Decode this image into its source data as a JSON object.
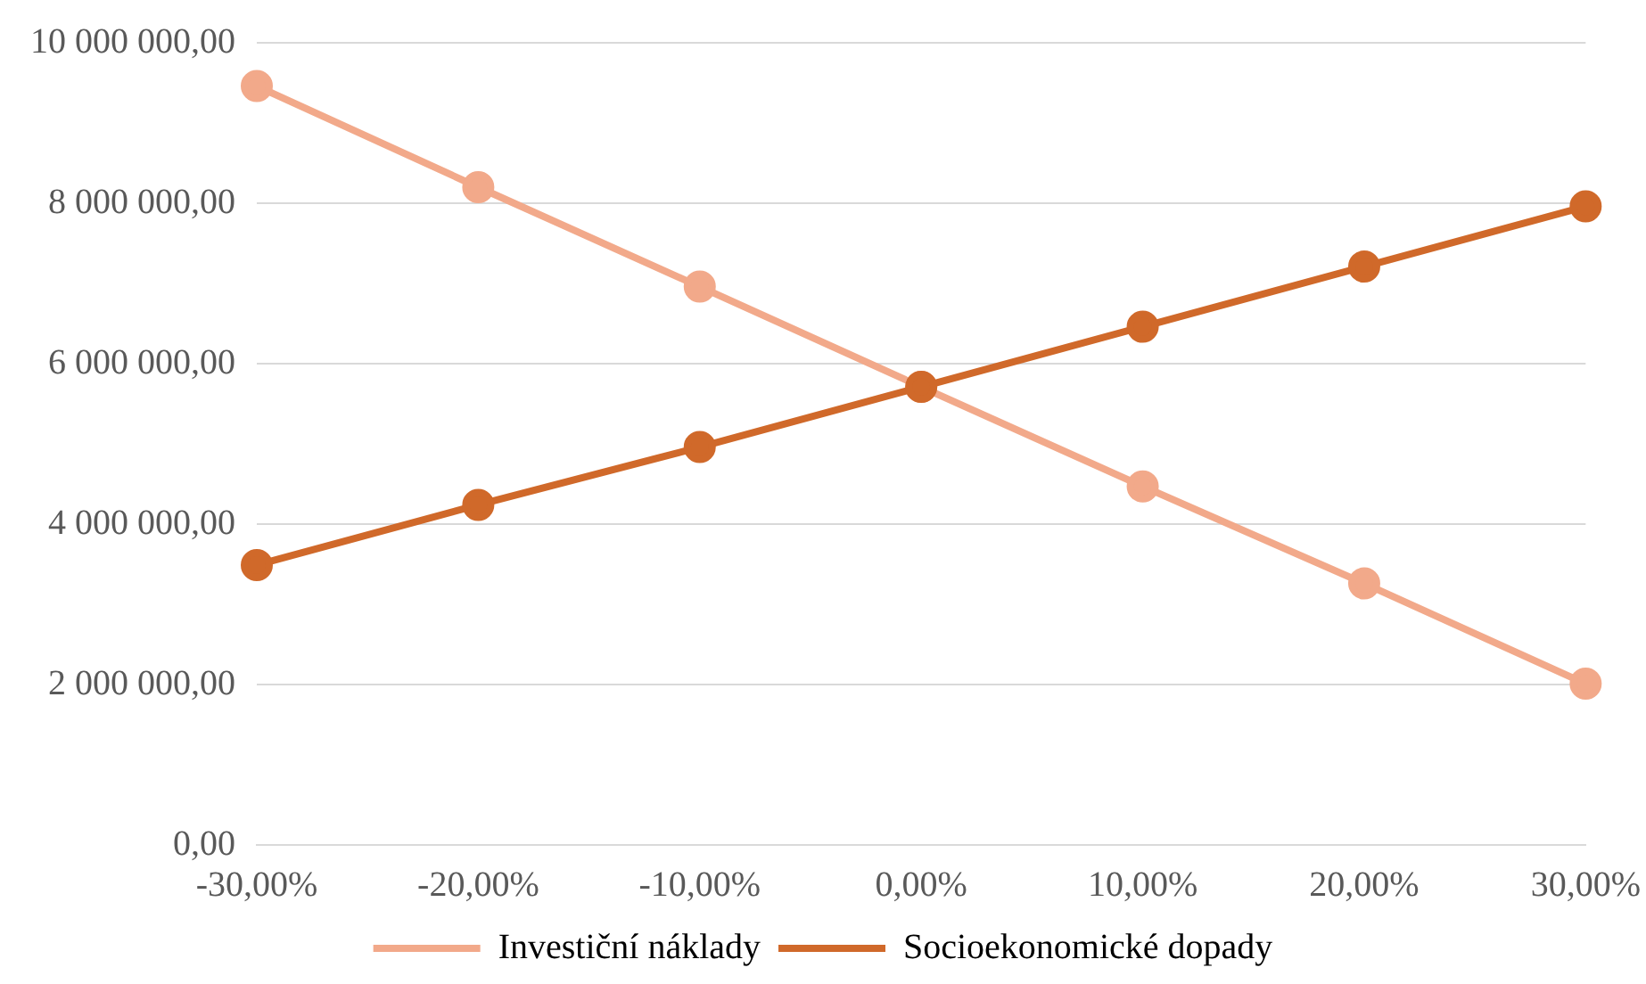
{
  "chart_data": {
    "type": "line",
    "categories": [
      "-30,00%",
      "-20,00%",
      "-10,00%",
      "0,00%",
      "10,00%",
      "20,00%",
      "30,00%"
    ],
    "series": [
      {
        "name": "Investiční náklady",
        "color": "#f2a98a",
        "values": [
          9460000,
          8200000,
          6960000,
          5710000,
          4470000,
          3260000,
          2010000
        ]
      },
      {
        "name": "Socioekonomické dopady",
        "color": "#d0692a",
        "values": [
          3490000,
          4240000,
          4960000,
          5710000,
          6460000,
          7210000,
          7960000
        ]
      }
    ],
    "ylim": [
      0,
      10000000
    ],
    "yticks": [
      {
        "value": 0,
        "label": "0,00"
      },
      {
        "value": 2000000,
        "label": "2 000 000,00"
      },
      {
        "value": 4000000,
        "label": "4 000 000,00"
      },
      {
        "value": 6000000,
        "label": "6 000 000,00"
      },
      {
        "value": 8000000,
        "label": "8 000 000,00"
      },
      {
        "value": 10000000,
        "label": "10 000 000,00"
      }
    ],
    "grid": "y",
    "legend": "bottom",
    "marker": "circle",
    "line_style": "solid"
  }
}
